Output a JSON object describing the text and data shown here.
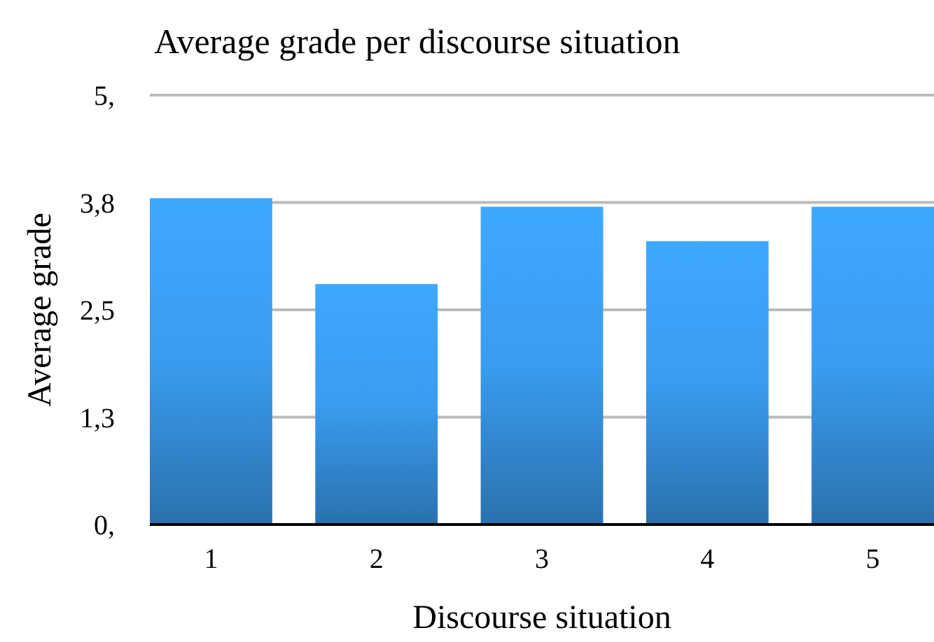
{
  "chart_data": {
    "type": "bar",
    "title": "Average grade per discourse situation",
    "xlabel": "Discourse situation",
    "ylabel": "Average grade",
    "categories": [
      "1",
      "2",
      "3",
      "4",
      "5"
    ],
    "values": [
      3.8,
      2.8,
      3.7,
      3.3,
      3.7
    ],
    "color": "#3a9cef",
    "ylim": [
      0,
      5
    ],
    "yticks": [
      {
        "value": 0,
        "label": "0,"
      },
      {
        "value": 1.25,
        "label": "1,3"
      },
      {
        "value": 2.5,
        "label": "2,5"
      },
      {
        "value": 3.75,
        "label": "3,8"
      },
      {
        "value": 5,
        "label": "5,"
      }
    ],
    "grid": "y"
  }
}
